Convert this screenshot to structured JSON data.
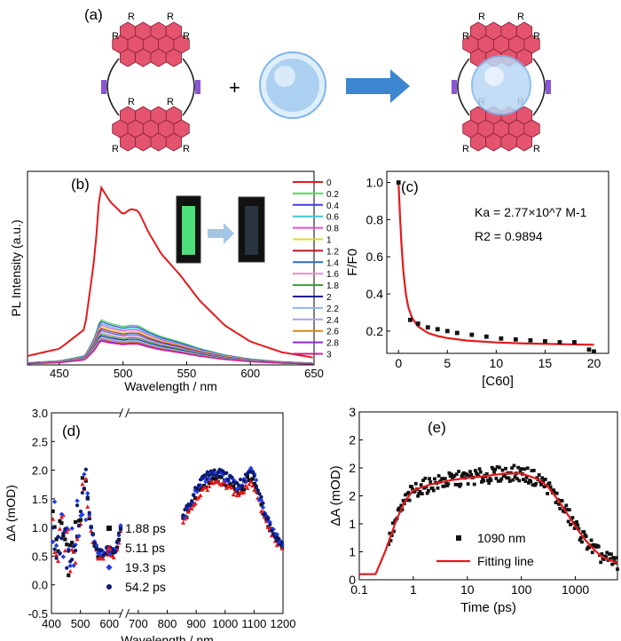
{
  "figure_panels": {
    "a": {
      "label": "(a)",
      "substituent_label": "R",
      "plus_sign": "+",
      "colors": {
        "hbc": "#e4546e",
        "hbc_edge": "#8a1f36",
        "linker": "#8a55d6",
        "c60": "#7fb4e8",
        "arrow": "#3b86cf"
      }
    },
    "b": {
      "label": "(b)",
      "legend_title": "C60 : [4,2]CPHBC"
    },
    "c": {
      "label": "(c)",
      "ka_label": "Ka = 2.77×10^7 M-1",
      "r2_label": "R2 = 0.9894"
    },
    "d": {
      "label": "(d)"
    },
    "e": {
      "label": "(e)"
    }
  },
  "chart_data": [
    {
      "id": "b",
      "type": "line",
      "title": "",
      "xlabel": "Wavelength / nm",
      "ylabel": "PL Intensity (a.u.)",
      "xlim": [
        425,
        650
      ],
      "ylim": [
        0,
        1.08
      ],
      "xticks": [
        450,
        500,
        550,
        600,
        650
      ],
      "yticks": [],
      "legend_position": "right",
      "profile_x": [
        425,
        450,
        470,
        478,
        482,
        490,
        500,
        506,
        512,
        520,
        530,
        545,
        560,
        580,
        600,
        625,
        650
      ],
      "profile_y": [
        0.05,
        0.09,
        0.2,
        0.62,
        1.0,
        0.91,
        0.84,
        0.87,
        0.86,
        0.74,
        0.62,
        0.5,
        0.36,
        0.22,
        0.13,
        0.07,
        0.04
      ],
      "series": [
        {
          "name": "0",
          "scale": 1.0,
          "color": "#e41a1c"
        },
        {
          "name": "0.2",
          "scale": 0.255,
          "color": "#4de14d"
        },
        {
          "name": "0.4",
          "scale": 0.245,
          "color": "#3e3ee8"
        },
        {
          "name": "0.6",
          "scale": 0.235,
          "color": "#3ec8d8"
        },
        {
          "name": "0.8",
          "scale": 0.225,
          "color": "#e84fd8"
        },
        {
          "name": "1",
          "scale": 0.215,
          "color": "#d8d83a"
        },
        {
          "name": "1.2",
          "scale": 0.205,
          "color": "#c0162a"
        },
        {
          "name": "1.4",
          "scale": 0.195,
          "color": "#2d6bd8"
        },
        {
          "name": "1.6",
          "scale": 0.185,
          "color": "#e88cd0"
        },
        {
          "name": "1.8",
          "scale": 0.175,
          "color": "#3a9a3a"
        },
        {
          "name": "2",
          "scale": 0.165,
          "color": "#1a1a9a"
        },
        {
          "name": "2.2",
          "scale": 0.158,
          "color": "#8ab8f0"
        },
        {
          "name": "2.4",
          "scale": 0.152,
          "color": "#a3a3e8"
        },
        {
          "name": "2.6",
          "scale": 0.146,
          "color": "#e0841a"
        },
        {
          "name": "2.8",
          "scale": 0.14,
          "color": "#8a2ad8"
        },
        {
          "name": "3",
          "scale": 0.134,
          "color": "#d81a8a"
        }
      ]
    },
    {
      "id": "c",
      "type": "scatter",
      "title": "",
      "xlabel": "[C60]",
      "ylabel": "F/F0",
      "xlim": [
        -1.2,
        21.5
      ],
      "ylim": [
        0.08,
        1.06
      ],
      "xticks": [
        0,
        5,
        10,
        15,
        20
      ],
      "yticks": [
        0.2,
        0.4,
        0.6,
        0.8,
        1.0
      ],
      "ytick_labels": [
        "0.2",
        "0.4",
        "0.6",
        "0.8",
        "1.0"
      ],
      "x": [
        0,
        1.2,
        2.0,
        3.0,
        4.0,
        5.0,
        6.0,
        7.5,
        9.0,
        10.5,
        12.0,
        13.5,
        15.0,
        16.5,
        18.0,
        19.5,
        20.0
      ],
      "y": [
        1.0,
        0.26,
        0.24,
        0.22,
        0.21,
        0.2,
        0.19,
        0.18,
        0.17,
        0.16,
        0.155,
        0.15,
        0.145,
        0.14,
        0.14,
        0.1,
        0.09
      ],
      "fit": {
        "name": "fit",
        "color": "#e41a1c",
        "x": [
          0,
          0.15,
          0.3,
          0.5,
          0.75,
          1.0,
          1.4,
          2.0,
          3.0,
          4.0,
          5.0,
          7.0,
          10.0,
          13.0,
          16.0,
          20.0
        ],
        "y": [
          1.0,
          0.82,
          0.67,
          0.52,
          0.4,
          0.33,
          0.27,
          0.225,
          0.19,
          0.173,
          0.162,
          0.149,
          0.139,
          0.133,
          0.13,
          0.126
        ]
      }
    },
    {
      "id": "d",
      "type": "scatter",
      "title": "",
      "xlabel": "Wavelength / nm",
      "ylabel": "ΔA (mOD)",
      "xlim": [
        400,
        1200
      ],
      "ylim": [
        -0.5,
        3.0
      ],
      "xticks": [
        400,
        500,
        600,
        700,
        800,
        900,
        1000,
        1100,
        1200
      ],
      "yticks": [
        -0.5,
        0.0,
        0.5,
        1.0,
        1.5,
        2.0,
        2.5,
        3.0
      ],
      "ytick_labels": [
        "-0.5",
        "0.0",
        "0.5",
        "1.0",
        "1.5",
        "2.0",
        "2.5",
        "3.0"
      ],
      "axis_break": "between 640 and 850 nm",
      "legend_position": "bottom-center",
      "profile_x": [
        405,
        420,
        440,
        460,
        480,
        500,
        515,
        525,
        540,
        560,
        580,
        600,
        620,
        640,
        850,
        880,
        900,
        920,
        940,
        960,
        980,
        1000,
        1020,
        1040,
        1060,
        1080,
        1090,
        1100,
        1120,
        1140,
        1160,
        1180,
        1200
      ],
      "profile_y": [
        1.1,
        0.8,
        0.9,
        0.6,
        0.7,
        1.4,
        1.55,
        1.5,
        0.9,
        0.55,
        0.55,
        0.6,
        0.55,
        1.0,
        1.1,
        1.4,
        1.6,
        1.75,
        1.85,
        1.9,
        1.88,
        1.85,
        1.8,
        1.7,
        1.7,
        1.9,
        1.95,
        1.85,
        1.5,
        1.2,
        0.95,
        0.8,
        0.65
      ],
      "series": [
        {
          "name": "1.88 ps",
          "scale": 0.97,
          "marker": "square",
          "color": "#111111"
        },
        {
          "name": "5.11 ps",
          "scale": 0.93,
          "marker": "triangle",
          "color": "#e41a1c"
        },
        {
          "name": "19.3 ps",
          "scale": 1.02,
          "marker": "diamond",
          "color": "#1f3de8"
        },
        {
          "name": "54.2 ps",
          "scale": 1.04,
          "marker": "circle",
          "color": "#0d1a6e"
        }
      ]
    },
    {
      "id": "e",
      "type": "scatter",
      "title": "",
      "xlabel": "Time (ps)",
      "ylabel": "ΔA (mOD)",
      "xscale": "log",
      "xlim": [
        0.1,
        6000
      ],
      "ylim": [
        0,
        3.0
      ],
      "xticks": [
        0.1,
        1,
        10,
        100,
        1000
      ],
      "xtick_labels": [
        "0.1",
        "1",
        "10",
        "100",
        "1000"
      ],
      "yticks": [
        0,
        0.5,
        1.0,
        1.5,
        2.0,
        2.5,
        3.0
      ],
      "ytick_labels": [
        "0",
        "1",
        "1",
        "2",
        "2",
        "2",
        "3"
      ],
      "legend_position": "bottom-center",
      "series_name": "1090 nm",
      "fit_name": "Fitting line",
      "fit_color": "#e41a1c",
      "fit_x": [
        0.1,
        0.2,
        0.3,
        0.5,
        0.7,
        1,
        2,
        5,
        10,
        20,
        50,
        100,
        200,
        300,
        500,
        800,
        1000,
        1500,
        2000,
        3000,
        4000,
        5000,
        6000
      ],
      "fit_y": [
        0.1,
        0.1,
        0.5,
        1.1,
        1.4,
        1.6,
        1.7,
        1.78,
        1.82,
        1.85,
        1.9,
        1.9,
        1.8,
        1.68,
        1.4,
        1.1,
        0.95,
        0.72,
        0.58,
        0.42,
        0.36,
        0.33,
        0.3
      ]
    }
  ]
}
